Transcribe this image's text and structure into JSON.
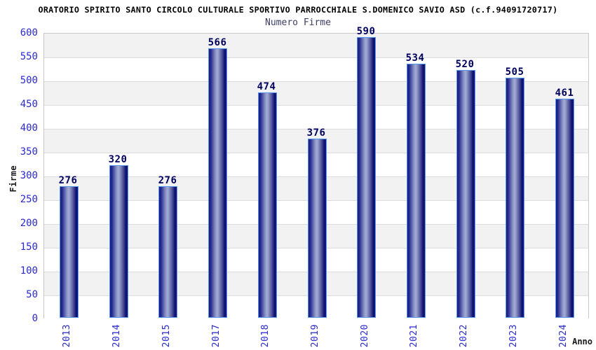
{
  "chart_data": {
    "type": "bar",
    "title": "ORATORIO SPIRITO SANTO CIRCOLO CULTURALE SPORTIVO PARROCCHIALE S.DOMENICO SAVIO ASD (c.f.94091720717)",
    "subtitle": "Numero Firme",
    "xlabel": "Anno",
    "ylabel": "Firme",
    "categories": [
      "2013",
      "2014",
      "2015",
      "2017",
      "2018",
      "2019",
      "2020",
      "2021",
      "2022",
      "2023",
      "2024"
    ],
    "values": [
      276,
      320,
      276,
      566,
      474,
      376,
      590,
      534,
      520,
      505,
      461
    ],
    "ylim": [
      0,
      600
    ],
    "y_ticks": [
      0,
      50,
      100,
      150,
      200,
      250,
      300,
      350,
      400,
      450,
      500,
      550,
      600
    ],
    "grid": "horizontal gridlines with alternating 50-unit background bands",
    "legend": "none",
    "colors": {
      "bar_edge": "#5599ee",
      "bar_dark": "#181880",
      "bar_light": "#a3abd4",
      "value_label": "#00005e",
      "tick_label": "#2929cc",
      "band_gray": "#f2f2f2",
      "band_white": "#ffffff",
      "gridline": "#dcdcdc",
      "subtitle": "#3d3d66",
      "title": "#000000"
    }
  }
}
